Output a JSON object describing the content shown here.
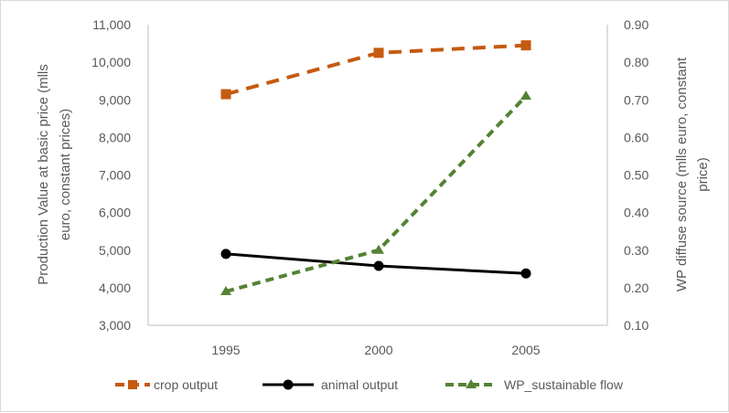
{
  "chart_data": {
    "type": "line",
    "categories": [
      "1995",
      "2000",
      "2005"
    ],
    "series": [
      {
        "name": "crop output",
        "axis": "left",
        "values": [
          9150,
          10250,
          10450
        ],
        "color": "#c55a11",
        "style": "dashed",
        "marker": "square"
      },
      {
        "name": "animal output",
        "axis": "left",
        "values": [
          4900,
          4580,
          4380
        ],
        "color": "#000000",
        "style": "solid",
        "marker": "circle"
      },
      {
        "name": "WP_sustainable flow",
        "axis": "right",
        "values": [
          0.19,
          0.3,
          0.71
        ],
        "color": "#548235",
        "style": "dashed",
        "marker": "triangle"
      }
    ],
    "y_left": {
      "label_lines": [
        "Production Value at basic price (mlls",
        "euro, constant prices)"
      ],
      "ylim": [
        3000,
        11000
      ],
      "ticks": [
        "3,000",
        "4,000",
        "5,000",
        "6,000",
        "7,000",
        "8,000",
        "9,000",
        "10,000",
        "11,000"
      ]
    },
    "y_right": {
      "label_lines": [
        "WP diffuse source (mlls euro, constant",
        "price)"
      ],
      "ylim": [
        0.1,
        0.9
      ],
      "ticks": [
        "0.10",
        "0.20",
        "0.30",
        "0.40",
        "0.50",
        "0.60",
        "0.70",
        "0.80",
        "0.90"
      ]
    },
    "grid": false,
    "legend_position": "bottom"
  }
}
